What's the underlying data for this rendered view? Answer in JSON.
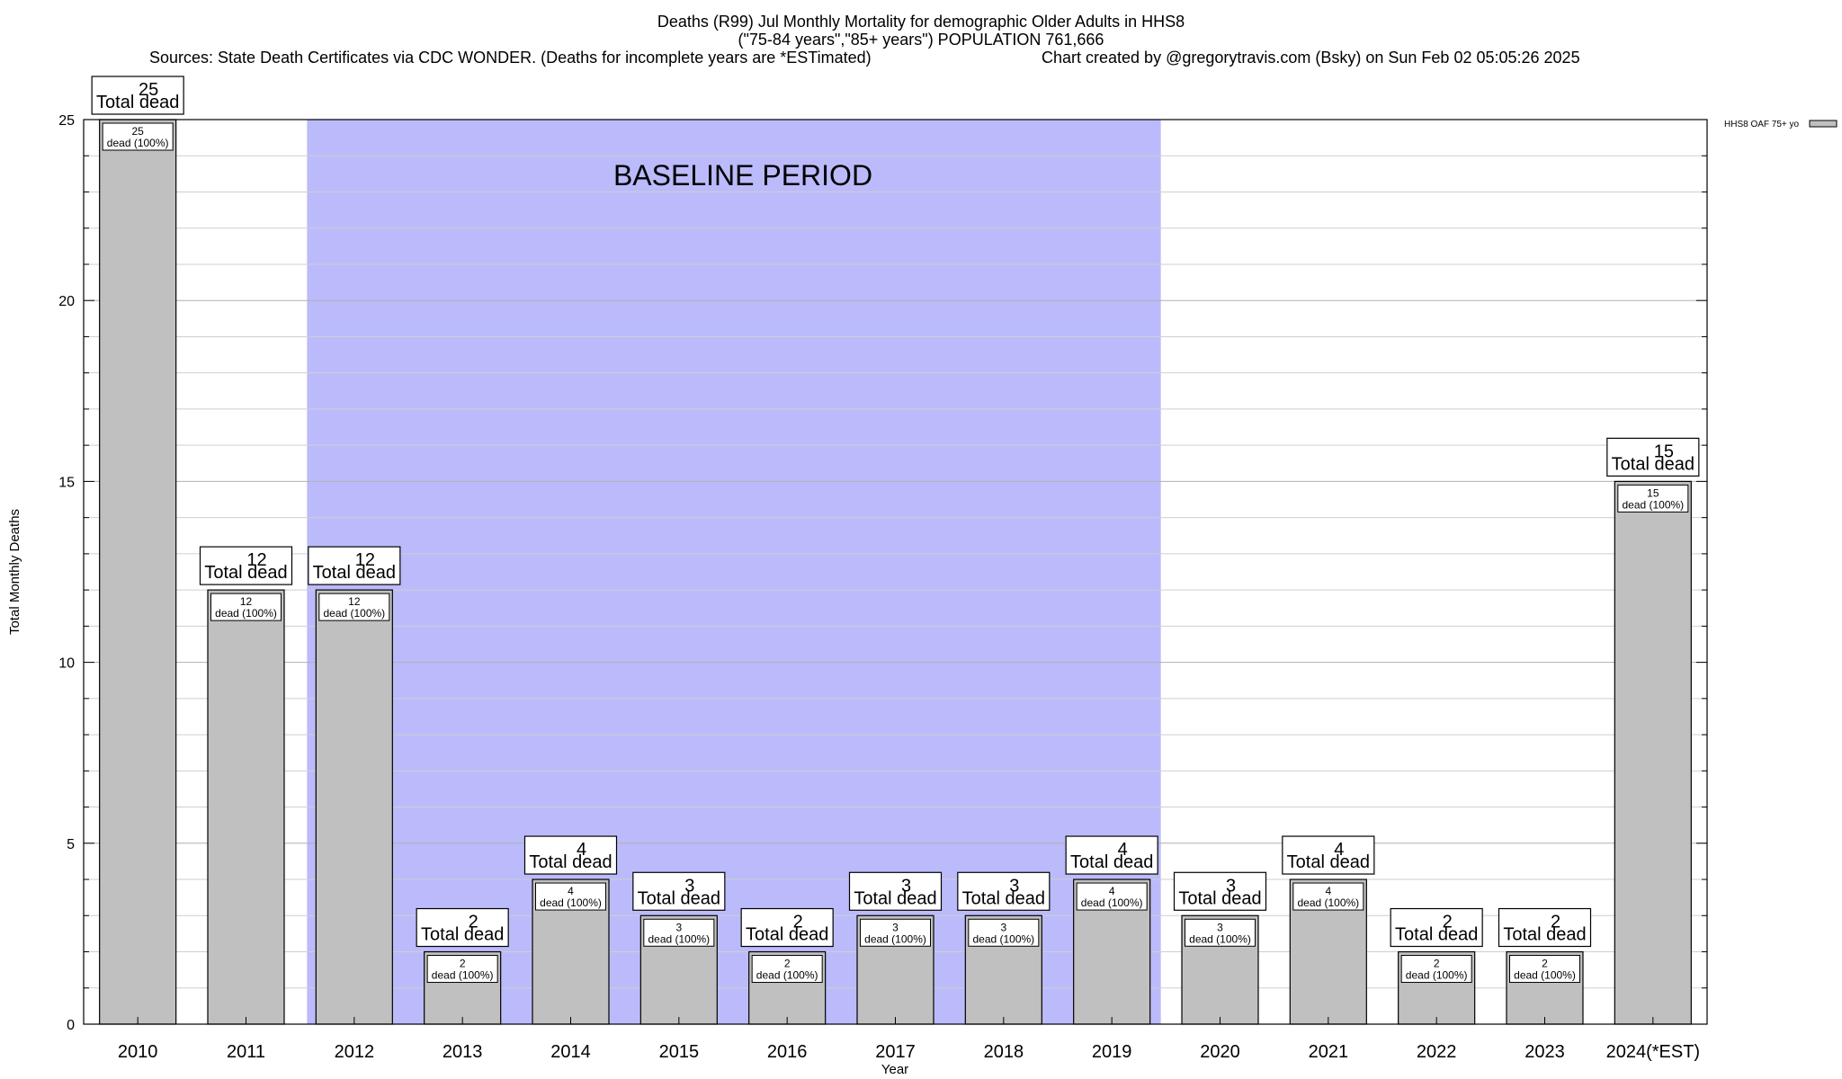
{
  "header": {
    "title": "Deaths (R99) Jul Monthly Mortality for demographic Older Adults in HHS8",
    "subtitle": "(\"75-84 years\",\"85+ years\") POPULATION 761,666",
    "sources": "Sources: State Death Certificates via CDC WONDER. (Deaths for incomplete years are *ESTimated)",
    "credit": "Chart created by @gregorytravis.com (Bsky) on Sun Feb 02 05:05:26 2025"
  },
  "chart_data": {
    "type": "bar",
    "title": "Deaths (R99) Jul Monthly Mortality for demographic Older Adults in HHS8",
    "xlabel": "Year",
    "ylabel": "Total Monthly Deaths",
    "ylim": [
      0,
      25
    ],
    "yticks": [
      0,
      5,
      10,
      15,
      20,
      25
    ],
    "grid": true,
    "legend_position": "top-right",
    "categories": [
      "2010",
      "2011",
      "2012",
      "2013",
      "2014",
      "2015",
      "2016",
      "2017",
      "2018",
      "2019",
      "2020",
      "2021",
      "2022",
      "2023",
      "2024(*EST)"
    ],
    "series": [
      {
        "name": "HHS8 OAF 75+ yo",
        "color": "#c0c0c0",
        "values": [
          25,
          12,
          12,
          2,
          4,
          3,
          2,
          3,
          3,
          4,
          3,
          4,
          2,
          2,
          15
        ]
      }
    ],
    "total_label_text": "Total dead",
    "bar_label_text": "dead (100%)",
    "baseline": {
      "label": "BASELINE PERIOD",
      "from": "2012",
      "to": "2019",
      "color": "#bbbbfb"
    }
  }
}
